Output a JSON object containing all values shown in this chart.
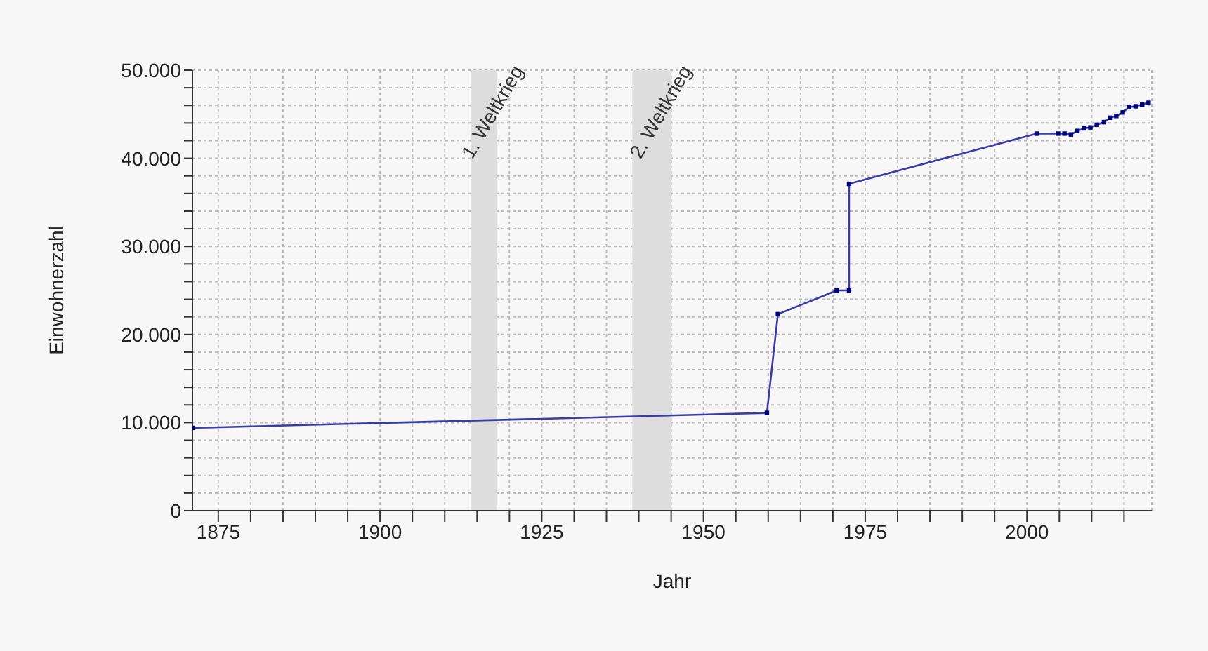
{
  "chart_data": {
    "type": "line",
    "xlabel": "Jahr",
    "ylabel": "Einwohnerzahl",
    "x": [
      1871,
      1959.8,
      1961.5,
      1970.6,
      1972.5,
      1972.5,
      2001.5,
      2004.8,
      2005.8,
      2006.8,
      2007.8,
      2008.8,
      2009.8,
      2010.8,
      2011.9,
      2012.9,
      2013.8,
      2014.8,
      2015.8,
      2016.8,
      2017.8,
      2018.8
    ],
    "series": [
      {
        "color": "#3a3aa8",
        "values": [
          9400,
          11100,
          22300,
          25000,
          25000,
          37100,
          42800,
          42800,
          42800,
          42700,
          43100,
          43400,
          43500,
          43800,
          44100,
          44600,
          44800,
          45200,
          45800,
          45900,
          46100,
          46300
        ]
      }
    ],
    "xlim": [
      1871,
      2019.3
    ],
    "xticks": [
      {
        "value": 1875,
        "label": "1875"
      },
      {
        "value": 1880,
        "label": null
      },
      {
        "value": 1885,
        "label": null
      },
      {
        "value": 1890,
        "label": null
      },
      {
        "value": 1895,
        "label": null
      },
      {
        "value": 1900,
        "label": "1900"
      },
      {
        "value": 1905,
        "label": null
      },
      {
        "value": 1910,
        "label": null
      },
      {
        "value": 1915,
        "label": null
      },
      {
        "value": 1920,
        "label": null
      },
      {
        "value": 1925,
        "label": "1925"
      },
      {
        "value": 1930,
        "label": null
      },
      {
        "value": 1935,
        "label": null
      },
      {
        "value": 1940,
        "label": null
      },
      {
        "value": 1945,
        "label": null
      },
      {
        "value": 1950,
        "label": "1950"
      },
      {
        "value": 1955,
        "label": null
      },
      {
        "value": 1960,
        "label": null
      },
      {
        "value": 1965,
        "label": null
      },
      {
        "value": 1970,
        "label": null
      },
      {
        "value": 1975,
        "label": "1975"
      },
      {
        "value": 1980,
        "label": null
      },
      {
        "value": 1985,
        "label": null
      },
      {
        "value": 1990,
        "label": null
      },
      {
        "value": 1995,
        "label": null
      },
      {
        "value": 2000,
        "label": "2000"
      },
      {
        "value": 2005,
        "label": null
      },
      {
        "value": 2010,
        "label": null
      },
      {
        "value": 2015,
        "label": null
      }
    ],
    "ylim": [
      0,
      50000
    ],
    "yticks": [
      {
        "value": 0,
        "label": "0"
      },
      {
        "value": 2000,
        "label": null
      },
      {
        "value": 4000,
        "label": null
      },
      {
        "value": 6000,
        "label": null
      },
      {
        "value": 8000,
        "label": null
      },
      {
        "value": 10000,
        "label": "10.000"
      },
      {
        "value": 12000,
        "label": null
      },
      {
        "value": 14000,
        "label": null
      },
      {
        "value": 16000,
        "label": null
      },
      {
        "value": 18000,
        "label": null
      },
      {
        "value": 20000,
        "label": "20.000"
      },
      {
        "value": 22000,
        "label": null
      },
      {
        "value": 24000,
        "label": null
      },
      {
        "value": 26000,
        "label": null
      },
      {
        "value": 28000,
        "label": null
      },
      {
        "value": 30000,
        "label": "30.000"
      },
      {
        "value": 32000,
        "label": null
      },
      {
        "value": 34000,
        "label": null
      },
      {
        "value": 36000,
        "label": null
      },
      {
        "value": 38000,
        "label": null
      },
      {
        "value": 40000,
        "label": "40.000"
      },
      {
        "value": 42000,
        "label": null
      },
      {
        "value": 44000,
        "label": null
      },
      {
        "value": 46000,
        "label": null
      },
      {
        "value": 48000,
        "label": null
      },
      {
        "value": 50000,
        "label": "50.000"
      }
    ],
    "bands": [
      {
        "axis": "x",
        "from": 1914,
        "to": 1918,
        "label": "1. Weltkrieg",
        "color": "#dddddd"
      },
      {
        "axis": "x",
        "from": 1939,
        "to": 1945,
        "label": "2. Weltkrieg",
        "color": "#dddddd"
      }
    ],
    "grid": true,
    "marker": "square",
    "line_style": "solid",
    "legend": false
  }
}
